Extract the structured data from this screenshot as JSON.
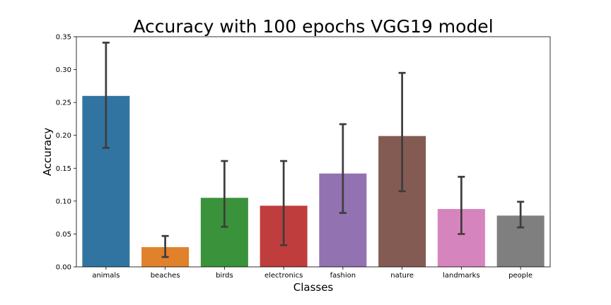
{
  "chart_data": {
    "type": "bar",
    "title": "Accuracy with 100 epochs VGG19 model",
    "xlabel": "Classes",
    "ylabel": "Accuracy",
    "ylim": [
      0,
      0.35
    ],
    "yticks": [
      "0.00",
      "0.05",
      "0.10",
      "0.15",
      "0.20",
      "0.25",
      "0.30",
      "0.35"
    ],
    "ytick_values": [
      0,
      0.05,
      0.1,
      0.15,
      0.2,
      0.25,
      0.3,
      0.35
    ],
    "categories": [
      "animals",
      "beaches",
      "birds",
      "electronics",
      "fashion",
      "nature",
      "landmarks",
      "people"
    ],
    "values": [
      0.26,
      0.03,
      0.105,
      0.093,
      0.142,
      0.199,
      0.088,
      0.078
    ],
    "error_low": [
      0.181,
      0.015,
      0.061,
      0.033,
      0.082,
      0.115,
      0.05,
      0.06
    ],
    "error_high": [
      0.341,
      0.047,
      0.161,
      0.161,
      0.217,
      0.295,
      0.137,
      0.099
    ],
    "colors": [
      "#3274a1",
      "#e1812c",
      "#3a923a",
      "#c03d3e",
      "#9372b2",
      "#845b53",
      "#d684bd",
      "#7f7f7f"
    ],
    "error_color": "#3d3d3d",
    "grid": false,
    "legend": "none"
  }
}
